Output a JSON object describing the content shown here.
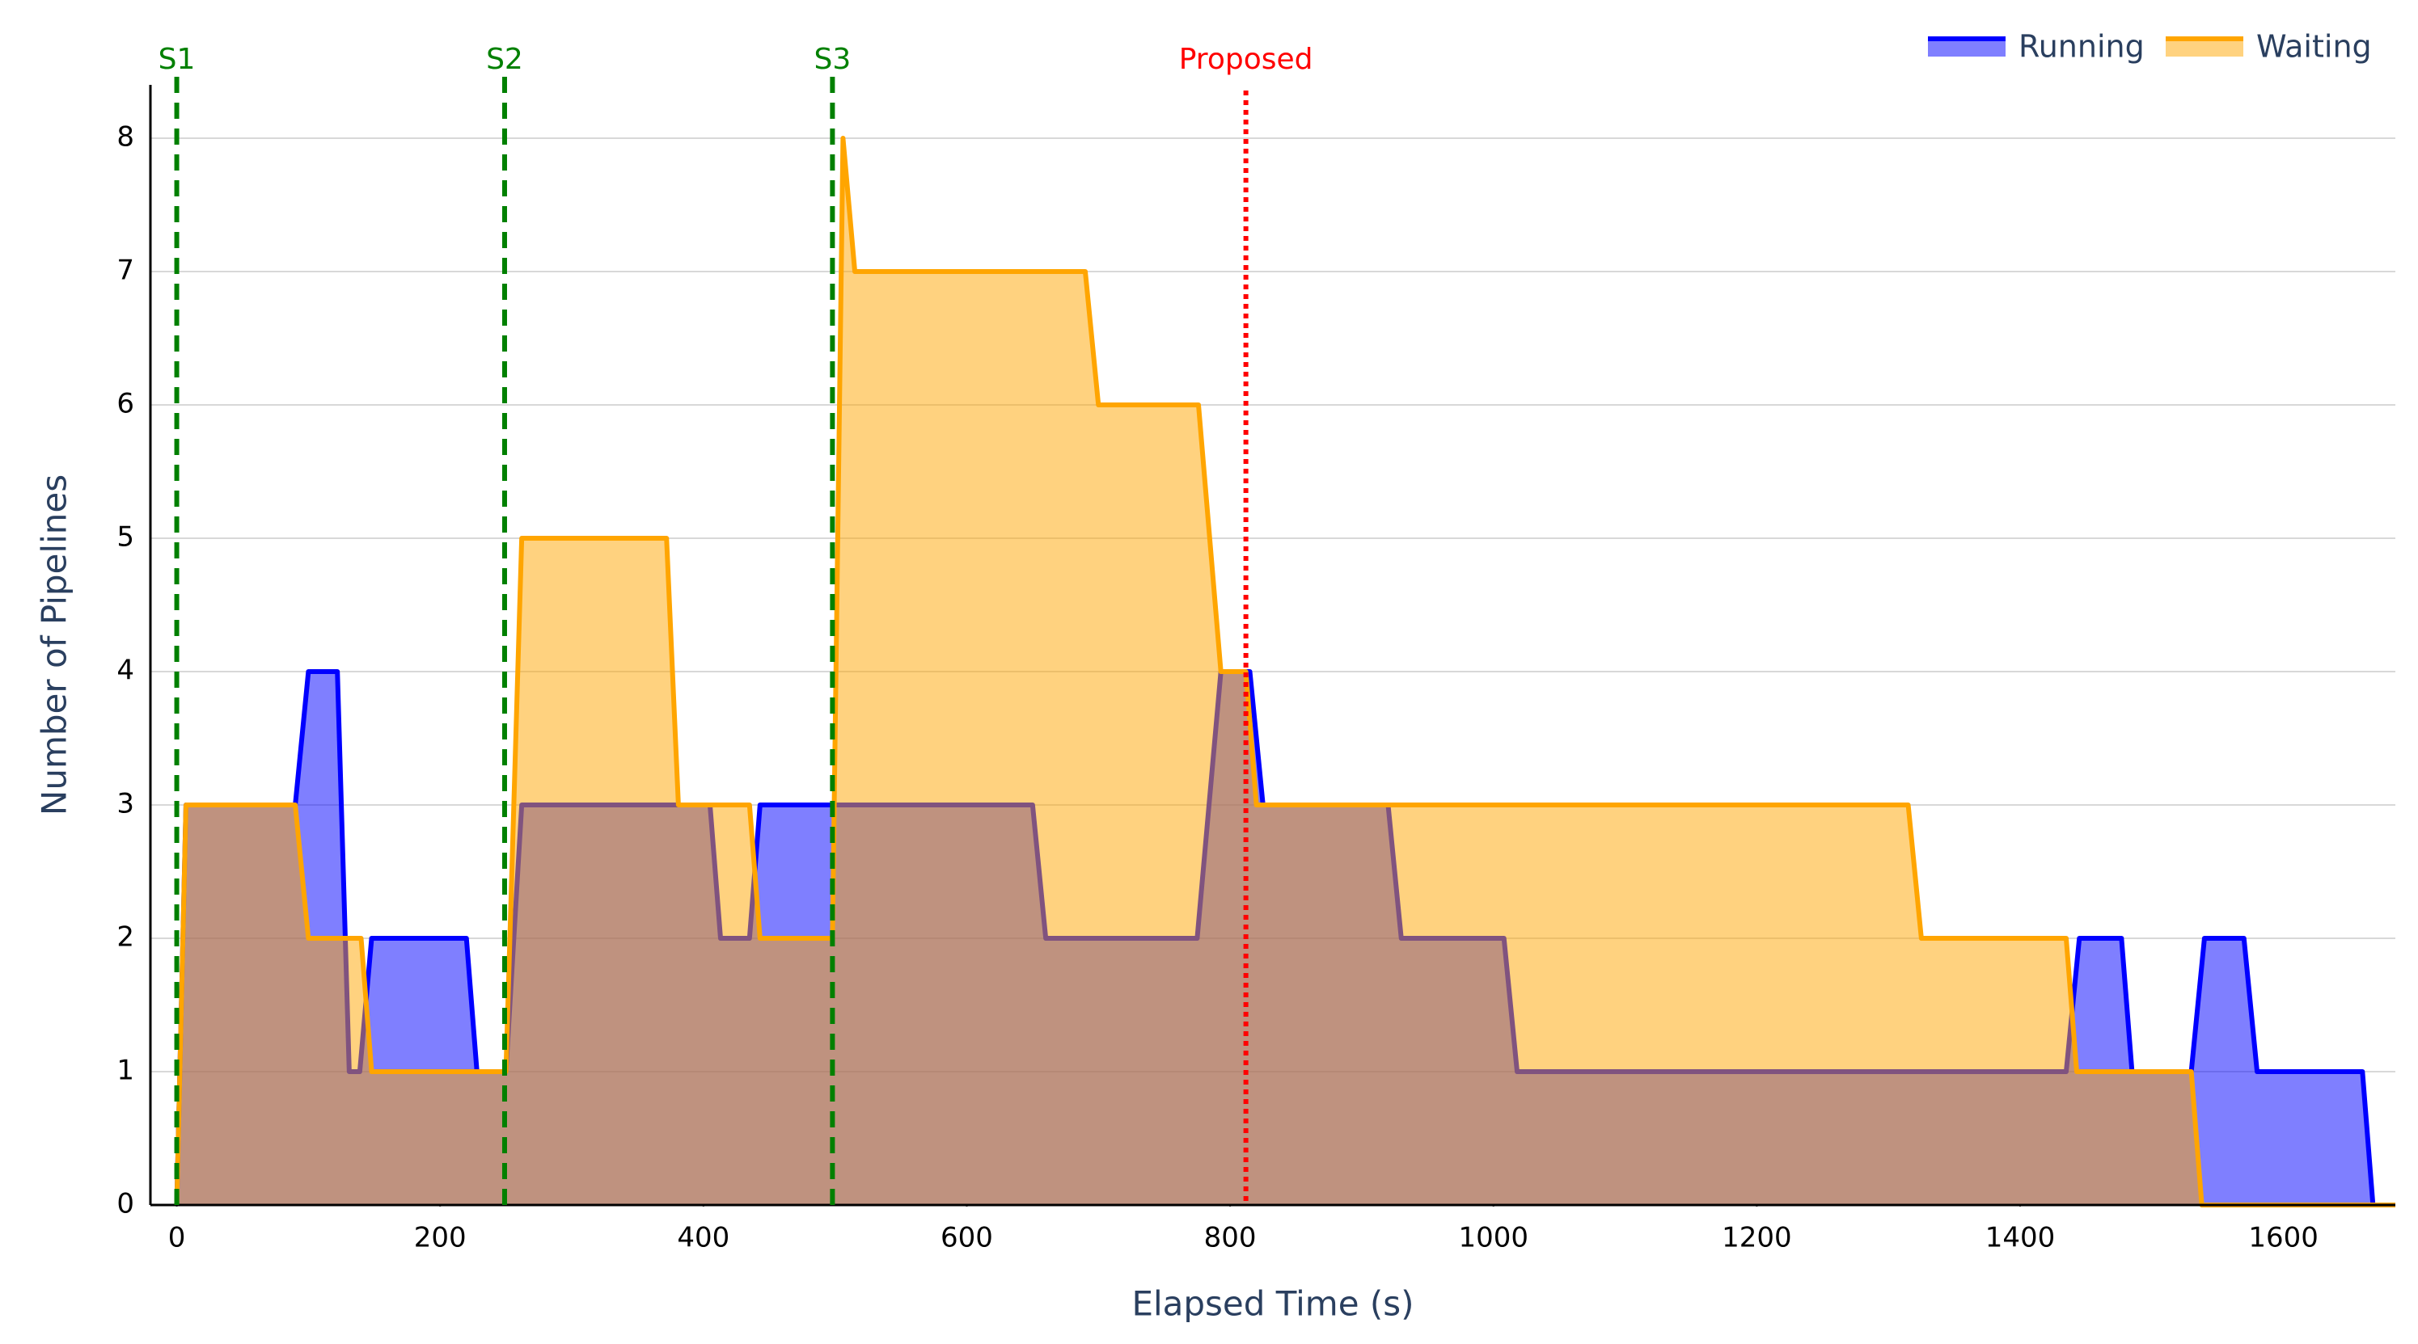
{
  "chart_data": {
    "type": "area",
    "x_label": "Elapsed Time (s)",
    "y_label": "Number of Pipelines",
    "xlim": [
      -20,
      1685
    ],
    "ylim": [
      0,
      8.4
    ],
    "xticks": [
      0,
      200,
      400,
      600,
      800,
      1000,
      1200,
      1400,
      1600
    ],
    "yticks": [
      0,
      1,
      2,
      3,
      4,
      5,
      6,
      7,
      8
    ],
    "grid": true,
    "legend": "top-right",
    "series": [
      {
        "name": "Running",
        "color": "#0000ff",
        "x": [
          0,
          7,
          90,
          100,
          122,
          131,
          139,
          148,
          220,
          228,
          250,
          262,
          405,
          413,
          435,
          443,
          650,
          660,
          775,
          793,
          815,
          825,
          920,
          930,
          1008,
          1018,
          1435,
          1445,
          1477,
          1485,
          1530,
          1540,
          1570,
          1580,
          1660,
          1668,
          1685
        ],
        "values": [
          0,
          3,
          3,
          4,
          4,
          1,
          1,
          2,
          2,
          1,
          1,
          3,
          3,
          2,
          2,
          3,
          3,
          2,
          2,
          4,
          4,
          3,
          3,
          2,
          2,
          1,
          1,
          2,
          2,
          1,
          1,
          2,
          2,
          1,
          1,
          0,
          0
        ]
      },
      {
        "name": "Waiting",
        "color": "#ffa500",
        "x": [
          0,
          7,
          90,
          100,
          140,
          148,
          250,
          262,
          372,
          381,
          435,
          443,
          498,
          506,
          515,
          690,
          700,
          776,
          793,
          812,
          820,
          1315,
          1325,
          1435,
          1443,
          1530,
          1538,
          1685
        ],
        "values": [
          0,
          3,
          3,
          2,
          2,
          1,
          1,
          5,
          5,
          3,
          3,
          2,
          2,
          8,
          7,
          7,
          6,
          6,
          4,
          4,
          3,
          3,
          2,
          2,
          1,
          1,
          0,
          0
        ]
      }
    ],
    "markers": [
      {
        "label": "S1",
        "x": 0,
        "color": "#008000",
        "style": "dashed"
      },
      {
        "label": "S2",
        "x": 249,
        "color": "#008000",
        "style": "dashed"
      },
      {
        "label": "S3",
        "x": 498,
        "color": "#008000",
        "style": "dashed"
      },
      {
        "label": "Proposed",
        "x": 812,
        "color": "#ff0000",
        "style": "dotted"
      }
    ]
  }
}
